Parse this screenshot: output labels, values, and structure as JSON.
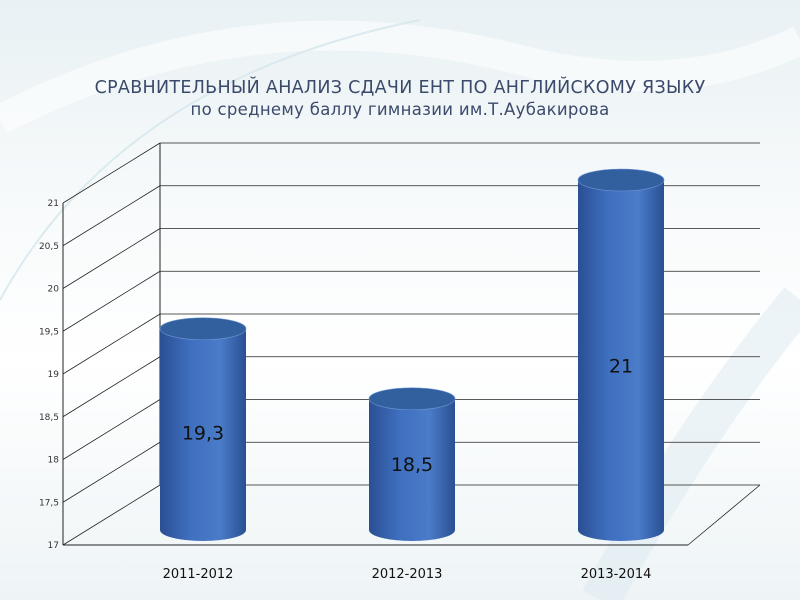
{
  "title": "СРАВНИТЕЛЬНЫЙ АНАЛИЗ СДАЧИ ЕНТ ПО АНГЛИЙСКОМУ ЯЗЫКУ",
  "subtitle": "по среднему баллу гимназии им.Т.Аубакирова",
  "colors": {
    "bar": "#3f6fbf",
    "bar_dark": "#2a4f93",
    "bar_top": "#32609f",
    "title": "#3b4a6b"
  },
  "chart_data": {
    "type": "bar",
    "style": "3d-cylinder",
    "categories": [
      "2011-2012",
      "2012-2013",
      "2013-2014"
    ],
    "values": [
      19.3,
      18.5,
      21
    ],
    "data_labels": [
      "19,3",
      "18,5",
      "21"
    ],
    "y_ticks": [
      "17",
      "17,5",
      "18",
      "18,5",
      "19",
      "19,5",
      "20",
      "20,5",
      "21"
    ],
    "ylim": [
      17,
      21
    ],
    "grid": true,
    "legend": "none"
  }
}
